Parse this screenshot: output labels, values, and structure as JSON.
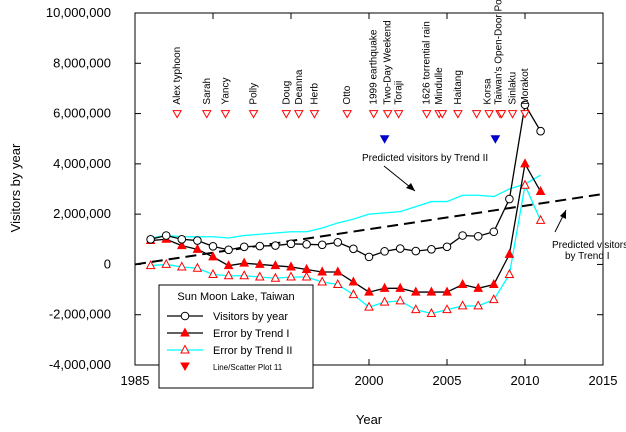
{
  "chart_data": {
    "type": "line",
    "xlabel": "Year",
    "ylabel": "Visitors by year",
    "xlim": [
      1985,
      2015
    ],
    "ylim": [
      -4000000,
      10000000
    ],
    "x_ticks": [
      1985,
      1990,
      1995,
      2000,
      2005,
      2010,
      2015
    ],
    "x_tick_labels": [
      "1985",
      "1990",
      "1995",
      "2000",
      "2005",
      "2010",
      "2015"
    ],
    "y_ticks": [
      -4000000,
      -2000000,
      0,
      2000000,
      4000000,
      6000000,
      8000000,
      10000000
    ],
    "y_tick_labels": [
      "-4,000,000",
      "-2,000,000",
      "0",
      "2,000,000",
      "4,000,000",
      "6,000,000",
      "8,000,000",
      "10,000,000"
    ],
    "grid": false,
    "legend": {
      "title": "Sun Moon Lake, Taiwan",
      "placement": "bottom-left",
      "entries": [
        "Visitors by year",
        "Error by Trend I",
        "Error by Trend II",
        "Line/Scatter Plot 11"
      ]
    },
    "series": [
      {
        "name": "Visitors by year",
        "color": "#000000",
        "marker": "open-circle",
        "x": [
          1986,
          1987,
          1988,
          1989,
          1990,
          1991,
          1992,
          1993,
          1994,
          1995,
          1996,
          1997,
          1998,
          1999,
          2000,
          2001,
          2002,
          2003,
          2004,
          2005,
          2006,
          2007,
          2008,
          2009,
          2010,
          2011
        ],
        "y": [
          1000000,
          1150000,
          1000000,
          950000,
          720000,
          580000,
          700000,
          730000,
          750000,
          820000,
          800000,
          780000,
          880000,
          620000,
          300000,
          520000,
          630000,
          530000,
          600000,
          700000,
          1150000,
          1120000,
          1300000,
          2600000,
          6350000,
          5300000
        ]
      },
      {
        "name": "Error by Trend I",
        "color": "#000000",
        "marker": "filled-triangle-red",
        "x": [
          1986,
          1987,
          1988,
          1989,
          1990,
          1991,
          1992,
          1993,
          1994,
          1995,
          1996,
          1997,
          1998,
          1999,
          2000,
          2001,
          2002,
          2003,
          2004,
          2005,
          2006,
          2007,
          2008,
          2009,
          2010,
          2011
        ],
        "y": [
          950000,
          1000000,
          750000,
          600000,
          300000,
          -50000,
          50000,
          0,
          -50000,
          -100000,
          -200000,
          -300000,
          -300000,
          -700000,
          -1100000,
          -950000,
          -950000,
          -1100000,
          -1100000,
          -1100000,
          -800000,
          -950000,
          -800000,
          400000,
          4000000,
          2900000
        ]
      },
      {
        "name": "Error by Trend II",
        "color": "#00ffff",
        "marker": "open-triangle-red",
        "x": [
          1986,
          1987,
          1988,
          1989,
          1990,
          1991,
          1992,
          1993,
          1994,
          1995,
          1996,
          1997,
          1998,
          1999,
          2000,
          2001,
          2002,
          2003,
          2004,
          2005,
          2006,
          2007,
          2008,
          2009,
          2010,
          2011
        ],
        "y": [
          -50000,
          0,
          -100000,
          -150000,
          -400000,
          -450000,
          -450000,
          -500000,
          -550000,
          -500000,
          -500000,
          -700000,
          -800000,
          -1200000,
          -1700000,
          -1500000,
          -1450000,
          -1800000,
          -1950000,
          -1800000,
          -1650000,
          -1650000,
          -1400000,
          -400000,
          3150000,
          1750000
        ]
      },
      {
        "name": "Predicted visitors by Trend I",
        "color": "#000000",
        "style": "dashed",
        "x": [
          1985,
          2015
        ],
        "y": [
          0,
          2800000
        ]
      },
      {
        "name": "Predicted visitors by Trend II",
        "color": "#00ffff",
        "marker": "none",
        "x": [
          1986,
          1987,
          1988,
          1989,
          1990,
          1991,
          1992,
          1993,
          1994,
          1995,
          1996,
          1997,
          1998,
          1999,
          2000,
          2001,
          2002,
          2003,
          2004,
          2005,
          2006,
          2007,
          2008,
          2009,
          2010,
          2011
        ],
        "y": [
          1050000,
          1150000,
          1100000,
          1100000,
          1100000,
          1050000,
          1150000,
          1200000,
          1250000,
          1300000,
          1300000,
          1450000,
          1650000,
          1800000,
          2000000,
          2050000,
          2100000,
          2300000,
          2500000,
          2500000,
          2750000,
          2750000,
          2700000,
          3000000,
          3200000,
          3550000
        ]
      },
      {
        "name": "Line/Scatter Plot 11",
        "color": "#ff0000",
        "marker": "down-triangle",
        "x": [
          1987.7,
          1989.6,
          1990.8,
          1992.6,
          1994.7,
          1995.5,
          1996.5,
          1998.6,
          2000.3,
          2001.2,
          2001.9,
          2003.7,
          2004.5,
          2004.7,
          2005.7,
          2006.9,
          2007.7,
          2008.4,
          2008.5,
          2009.2,
          2010.0
        ],
        "y": [
          6000000,
          6000000,
          6000000,
          6000000,
          6000000,
          6000000,
          6000000,
          6000000,
          6000000,
          6000000,
          6000000,
          6000000,
          6000000,
          6000000,
          6000000,
          6000000,
          6000000,
          6000000,
          6000000,
          6000000,
          6000000
        ]
      },
      {
        "name": "blue markers",
        "color": "#0000cc",
        "marker": "down-triangle",
        "x": [
          2001.0,
          2008.1
        ],
        "y": [
          5000000,
          5000000
        ]
      }
    ],
    "events": [
      {
        "label": "Alex typhoon",
        "x": 1987.7
      },
      {
        "label": "Sarah",
        "x": 1989.6
      },
      {
        "label": "Yancy",
        "x": 1990.8
      },
      {
        "label": "Polly",
        "x": 1992.6
      },
      {
        "label": "Doug",
        "x": 1994.7
      },
      {
        "label": "Deanna",
        "x": 1995.5
      },
      {
        "label": "Herb",
        "x": 1996.5
      },
      {
        "label": "Otto",
        "x": 1998.6
      },
      {
        "label": "1999 earthquake",
        "x": 2000.3
      },
      {
        "label": "Two-Day Weekend",
        "x": 2001.2
      },
      {
        "label": "Toraji",
        "x": 2001.9
      },
      {
        "label": "1626 torrential rain",
        "x": 2003.7
      },
      {
        "label": "Mindulle",
        "x": 2004.5
      },
      {
        "label": "Haitang",
        "x": 2005.7
      },
      {
        "label": "Korsa",
        "x": 2007.6
      },
      {
        "label": "Taiwan's Open-Door Policy",
        "x": 2008.3
      },
      {
        "label": "Sinlaku",
        "x": 2009.2
      },
      {
        "label": "Morakot",
        "x": 2010.0
      }
    ],
    "annotations": {
      "trend2": "Predicted visitors by Trend II",
      "trend1_line1": "Predicted visitors",
      "trend1_line2": "by Trend I"
    }
  }
}
